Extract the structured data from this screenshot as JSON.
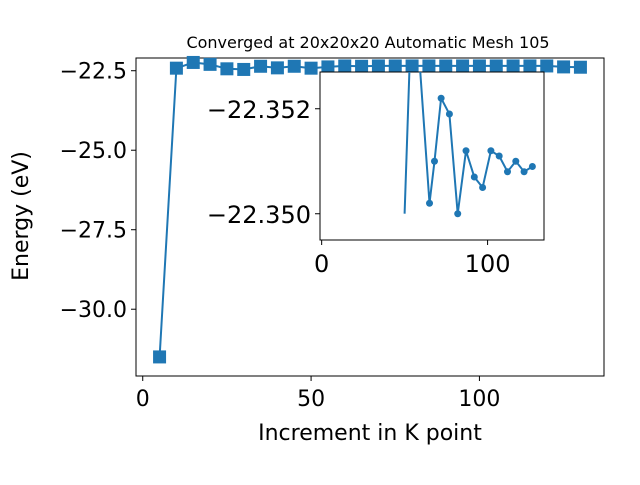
{
  "chart_data": [
    {
      "type": "line",
      "title": "Converged at 20x20x20 Automatic Mesh 105",
      "xlabel": "Increment in K point",
      "ylabel": "Energy (eV)",
      "xlim": [
        -2,
        137
      ],
      "ylim": [
        -32.1,
        -22.1
      ],
      "xticks": [
        0,
        50,
        100
      ],
      "xtick_labels": [
        "0",
        "50",
        "100"
      ],
      "yticks": [
        -30.0,
        -27.5,
        -25.0,
        -22.5
      ],
      "ytick_labels": [
        "−30.0",
        "−27.5",
        "−25.0",
        "−22.5"
      ],
      "marker": "square",
      "grid": false,
      "color": "#1f77b4",
      "x": [
        5,
        10,
        15,
        20,
        25,
        30,
        35,
        40,
        45,
        50,
        55,
        60,
        65,
        70,
        75,
        80,
        85,
        90,
        95,
        100,
        105,
        110,
        115,
        120,
        125,
        130
      ],
      "y": [
        -31.5,
        -22.42,
        -22.24,
        -22.3,
        -22.44,
        -22.46,
        -22.36,
        -22.41,
        -22.36,
        -22.42,
        -22.38,
        -22.35,
        -22.36,
        -22.35,
        -22.35,
        -22.35,
        -22.35,
        -22.35,
        -22.35,
        -22.35,
        -22.35,
        -22.35,
        -22.35,
        -22.35,
        -22.38,
        -22.39
      ]
    },
    {
      "type": "line",
      "title": "",
      "xlabel": "",
      "ylabel": "",
      "xlim": [
        -1,
        134
      ],
      "ylim": [
        -22.3495,
        -22.3527
      ],
      "xticks": [
        0,
        100
      ],
      "xtick_labels": [
        "0",
        "100"
      ],
      "yticks": [
        -22.35,
        -22.352
      ],
      "ytick_labels": [
        "−22.350",
        "−22.352"
      ],
      "marker": "circle",
      "grid": false,
      "color": "#1f77b4",
      "x": [
        50,
        55,
        65,
        68,
        72,
        77,
        82,
        87,
        92,
        97,
        102,
        107,
        112,
        117,
        122,
        127
      ],
      "y": [
        -22.35,
        -22.3547,
        -22.3502,
        -22.351,
        -22.3522,
        -22.3519,
        -22.35,
        -22.3512,
        -22.3507,
        -22.3505,
        -22.3512,
        -22.3511,
        -22.3508,
        -22.351,
        -22.3508,
        -22.3509
      ]
    }
  ]
}
